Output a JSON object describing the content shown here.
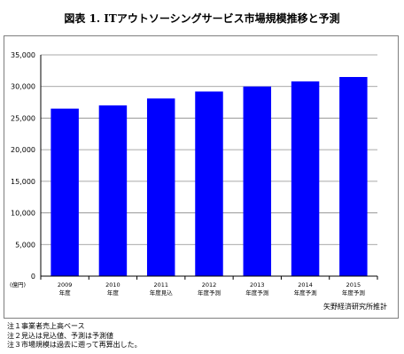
{
  "title": "図表 1. ITアウトソーシングサービス市場規模推移と予測",
  "unit_label": "(億円)",
  "source": "矢野経済研究所推計",
  "notes": [
    "注１事業者売上高ベース",
    "注２見込は見込値、予測は予測値",
    "注３市場規模は過去に遡って再算出した。"
  ],
  "colors": {
    "bar": "#0000ff",
    "grid": "#8c8c8c",
    "axis": "#000000"
  },
  "chart_data": {
    "type": "bar",
    "categories": [
      [
        "2009",
        "年度"
      ],
      [
        "2010",
        "年度"
      ],
      [
        "2011",
        "年度見込"
      ],
      [
        "2012",
        "年度予測"
      ],
      [
        "2013",
        "年度予測"
      ],
      [
        "2014",
        "年度予測"
      ],
      [
        "2015",
        "年度予測"
      ]
    ],
    "values": [
      26500,
      27000,
      28100,
      29200,
      30000,
      30800,
      31500
    ],
    "ylim": [
      0,
      35000
    ],
    "yticks": [
      0,
      5000,
      10000,
      15000,
      20000,
      25000,
      30000,
      35000
    ],
    "ytick_labels": [
      "0",
      "5,000",
      "10,000",
      "15,000",
      "20,000",
      "25,000",
      "30,000",
      "35,000"
    ],
    "grid": true,
    "legend": "none"
  }
}
